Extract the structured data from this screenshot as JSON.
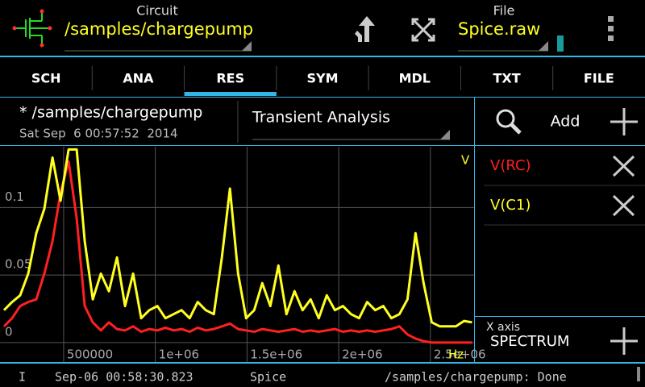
{
  "toolbar": {
    "circuit_label": "Circuit",
    "circuit": "/samples/chargepump",
    "file_label": "File",
    "file": "Spice.raw"
  },
  "tabs": [
    "SCH",
    "ANA",
    "RES",
    "SYM",
    "MDL",
    "TXT",
    "FILE"
  ],
  "header": {
    "path": "* /samples/chargepump",
    "date": "Sat Sep  6 00:57:52  2014",
    "analysis": "Transient Analysis",
    "add": "Add"
  },
  "xaxis_panel": {
    "label": "X axis",
    "value": "SPECTRUM"
  },
  "status": [
    "I",
    "Sep-06 00:58:30.823",
    "Spice",
    "/samples/chargepump: Done"
  ],
  "chart_data": {
    "type": "line",
    "y_label": "V",
    "x_label": "Hz",
    "xlim": [
      153000,
      2738000
    ],
    "ylim": [
      -0.015,
      0.145
    ],
    "xticks": [
      500000,
      {
        "value": 1000000,
        "label": "1e+06"
      },
      {
        "value": 1500000,
        "label": "1.5e+06"
      },
      {
        "value": 2000000,
        "label": "2e+06"
      },
      {
        "value": 2500000,
        "label": "2.5e+06"
      }
    ],
    "yticks": [
      0,
      0.05,
      0.1
    ],
    "grid": true,
    "x": [
      175000,
      219000,
      263000,
      307000,
      351000,
      395000,
      439000,
      483000,
      527000,
      571000,
      615000,
      659000,
      703000,
      747000,
      791000,
      835000,
      879000,
      923000,
      967000,
      1011000,
      1055000,
      1099000,
      1143000,
      1187000,
      1231000,
      1275000,
      1319000,
      1363000,
      1407000,
      1451000,
      1495000,
      1539000,
      1583000,
      1627000,
      1671000,
      1715000,
      1759000,
      1803000,
      1847000,
      1891000,
      1935000,
      1979000,
      2023000,
      2067000,
      2111000,
      2155000,
      2199000,
      2243000,
      2287000,
      2331000,
      2375000,
      2419000,
      2463000,
      2507000,
      2551000,
      2595000,
      2639000,
      2683000,
      2727000
    ],
    "series": [
      {
        "name": "V(RC)",
        "color": "#ff2020",
        "values": [
          0.012,
          0.018,
          0.027,
          0.03,
          0.032,
          0.051,
          0.075,
          0.111,
          0.134,
          0.092,
          0.027,
          0.015,
          0.009,
          0.015,
          0.01,
          0.009,
          0.012,
          0.008,
          0.01,
          0.009,
          0.011,
          0.009,
          0.01,
          0.008,
          0.011,
          0.009,
          0.01,
          0.012,
          0.014,
          0.01,
          0.009,
          0.008,
          0.01,
          0.009,
          0.008,
          0.009,
          0.01,
          0.008,
          0.009,
          0.008,
          0.009,
          0.01,
          0.008,
          0.009,
          0.008,
          0.009,
          0.008,
          0.009,
          0.01,
          0.012,
          0.006,
          0.003,
          0.001,
          0,
          0,
          0,
          0,
          0,
          0
        ]
      },
      {
        "name": "V(C1)",
        "color": "#ffff20",
        "values": [
          0.024,
          0.03,
          0.035,
          0.051,
          0.081,
          0.099,
          0.137,
          0.105,
          0.143,
          0.143,
          0.075,
          0.032,
          0.051,
          0.038,
          0.063,
          0.027,
          0.051,
          0.018,
          0.024,
          0.027,
          0.018,
          0.021,
          0.024,
          0.018,
          0.03,
          0.024,
          0.021,
          0.063,
          0.114,
          0.051,
          0.018,
          0.024,
          0.044,
          0.027,
          0.057,
          0.021,
          0.038,
          0.024,
          0.032,
          0.018,
          0.035,
          0.024,
          0.027,
          0.021,
          0.018,
          0.03,
          0.024,
          0.027,
          0.018,
          0.021,
          0.032,
          0.081,
          0.044,
          0.015,
          0.012,
          0.012,
          0.012,
          0.016,
          0.015
        ]
      }
    ]
  }
}
